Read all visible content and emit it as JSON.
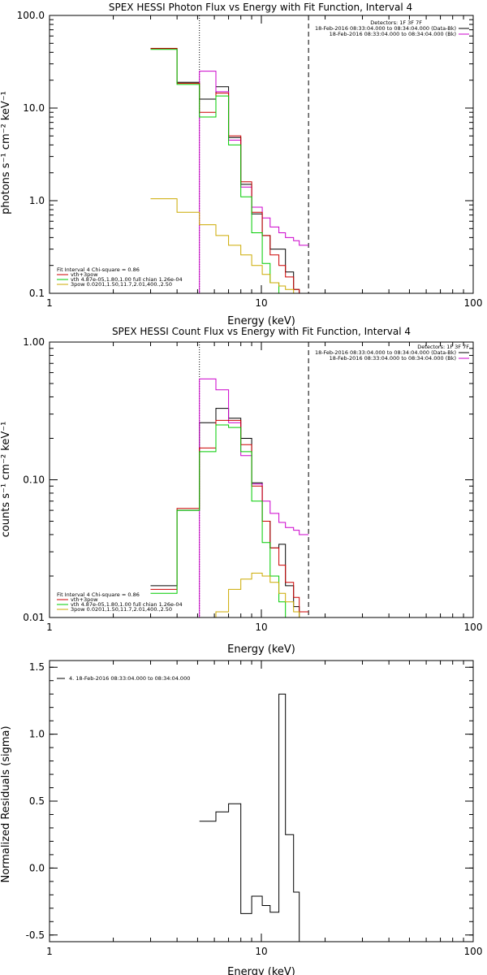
{
  "chart_data": [
    {
      "type": "line",
      "title": "SPEX HESSI Photon Flux vs Energy with Fit Function, Interval 4",
      "xlabel": "Energy (keV)",
      "ylabel": "photons s⁻¹ cm⁻² keV⁻¹",
      "xscale": "log",
      "yscale": "log",
      "xlim": [
        1,
        100
      ],
      "ylim": [
        0.1,
        100
      ],
      "xticks": [
        "1",
        "10",
        "100"
      ],
      "yticks": [
        "0.1",
        "1.0",
        "10.0",
        "100.0"
      ],
      "vlines": [
        {
          "x": 5.1,
          "style": "dotted"
        },
        {
          "x": 16.7,
          "style": "dashed"
        }
      ],
      "legend_right": {
        "header": "Detectors: 1F 3F 7F",
        "entries": [
          {
            "text": "18-Feb-2016 08:33:04.000 to 08:34:04.000 (Data-Bk)",
            "color": "#000000"
          },
          {
            "text": "18-Feb-2016 08:33:04.000 to 08:34:04.000 (Bk)",
            "color": "#cc00cc"
          }
        ]
      },
      "legend_left": {
        "header": "Fit Interval  4    Chi-square = 0.86",
        "entries": [
          {
            "text": "vth+3pow",
            "color": "#cc0000"
          },
          {
            "text": "vth 4.87e-05,1.80,1.00  full chian 1.26e-04",
            "color": "#00cc00"
          },
          {
            "text": "3pow 0.0201,1.50,11.7,2.01,400.,2.50",
            "color": "#ccaa00"
          }
        ]
      },
      "series": [
        {
          "color": "#000000",
          "edges": [
            3.0,
            4.0,
            5.1,
            6.1,
            7.0,
            8.0,
            9.0,
            10.1,
            11.0,
            12.1,
            13.0,
            14.2,
            15.1,
            16.7
          ],
          "values": [
            44,
            19,
            12.5,
            17,
            4.8,
            1.5,
            0.72,
            0.42,
            0.3,
            0.3,
            0.17,
            0.11,
            0.1
          ]
        },
        {
          "color": "#cc00cc",
          "edges": [
            3.0,
            4.0,
            5.1,
            6.1,
            7.0,
            8.0,
            9.0,
            10.1,
            11.0,
            12.1,
            13.0,
            14.2,
            15.1,
            16.7
          ],
          "values": [
            0.1,
            0.1,
            25,
            15,
            4.5,
            1.4,
            0.85,
            0.65,
            0.52,
            0.45,
            0.4,
            0.37,
            0.33
          ]
        },
        {
          "color": "#cc0000",
          "edges": [
            3.0,
            4.0,
            5.1,
            6.1,
            7.0,
            8.0,
            9.0,
            10.1,
            11.0,
            12.1,
            13.0,
            14.2,
            15.1,
            16.7
          ],
          "values": [
            44,
            18.5,
            9,
            14.5,
            5,
            1.6,
            0.75,
            0.42,
            0.26,
            0.2,
            0.15,
            0.11,
            0.1
          ]
        },
        {
          "color": "#00cc00",
          "edges": [
            3.0,
            4.0,
            5.1,
            6.1,
            7.0,
            8.0,
            9.0,
            10.1,
            11.0,
            12.1,
            13.0,
            14.2,
            15.1,
            16.7
          ],
          "values": [
            43,
            18,
            8,
            13.5,
            4,
            1.1,
            0.45,
            0.21,
            0.13,
            0.1,
            0.1,
            0.1,
            0.1
          ]
        },
        {
          "color": "#ccaa00",
          "edges": [
            3.0,
            4.0,
            5.1,
            6.1,
            7.0,
            8.0,
            9.0,
            10.1,
            11.0,
            12.1,
            13.0,
            14.2,
            15.1,
            16.7,
            18.0
          ],
          "values": [
            1.05,
            0.75,
            0.55,
            0.42,
            0.33,
            0.26,
            0.2,
            0.16,
            0.13,
            0.12,
            0.11,
            0.1,
            0.1,
            0.1
          ]
        }
      ]
    },
    {
      "type": "line",
      "title": "SPEX HESSI Count Flux vs Energy with Fit Function, Interval 4",
      "xlabel": "Energy (keV)",
      "ylabel": "counts s⁻¹ cm⁻² keV⁻¹",
      "xscale": "log",
      "yscale": "log",
      "xlim": [
        1,
        100
      ],
      "ylim": [
        0.01,
        1.0
      ],
      "xticks": [
        "1",
        "10",
        "100"
      ],
      "yticks": [
        "0.01",
        "0.10",
        "1.00"
      ],
      "vlines": [
        {
          "x": 5.1,
          "style": "dotted"
        },
        {
          "x": 16.7,
          "style": "dashed"
        }
      ],
      "legend_right": {
        "header": "Detectors: 1F 3F 7F",
        "entries": [
          {
            "text": "18-Feb-2016 08:33:04.000 to 08:34:04.000 (Data-Bk)",
            "color": "#000000"
          },
          {
            "text": "18-Feb-2016 08:33:04.000 to 08:34:04.000 (Bk)",
            "color": "#cc00cc"
          }
        ]
      },
      "legend_left": {
        "header": "Fit Interval  4    Chi-square = 0.86",
        "entries": [
          {
            "text": "vth+3pow",
            "color": "#cc0000"
          },
          {
            "text": "vth 4.87e-05,1.80,1.00  full chian 1.26e-04",
            "color": "#00cc00"
          },
          {
            "text": "3pow 0.0201,1.50,11.7,2.01,400.,2.50",
            "color": "#ccaa00"
          }
        ]
      },
      "series": [
        {
          "color": "#000000",
          "edges": [
            3.0,
            4.0,
            5.1,
            6.1,
            7.0,
            8.0,
            9.0,
            10.1,
            11.0,
            12.1,
            13.0,
            14.2,
            15.1,
            16.7
          ],
          "values": [
            0.017,
            0.06,
            0.26,
            0.33,
            0.28,
            0.2,
            0.095,
            0.05,
            0.032,
            0.034,
            0.017,
            0.012,
            0.01
          ]
        },
        {
          "color": "#cc00cc",
          "edges": [
            3.0,
            4.0,
            5.1,
            6.1,
            7.0,
            8.0,
            9.0,
            10.1,
            11.0,
            12.1,
            13.0,
            14.2,
            15.1,
            16.7
          ],
          "values": [
            0.01,
            0.01,
            0.54,
            0.45,
            0.26,
            0.15,
            0.093,
            0.07,
            0.057,
            0.049,
            0.045,
            0.043,
            0.04
          ]
        },
        {
          "color": "#cc0000",
          "edges": [
            3.0,
            4.0,
            5.1,
            6.1,
            7.0,
            8.0,
            9.0,
            10.1,
            11.0,
            12.1,
            13.0,
            14.2,
            15.1,
            16.7
          ],
          "values": [
            0.016,
            0.062,
            0.17,
            0.27,
            0.27,
            0.18,
            0.09,
            0.05,
            0.032,
            0.024,
            0.018,
            0.014,
            0.011
          ]
        },
        {
          "color": "#00cc00",
          "edges": [
            3.0,
            4.0,
            5.1,
            6.1,
            7.0,
            8.0,
            9.0,
            10.1,
            11.0,
            12.1,
            13.0,
            14.2,
            15.1,
            16.7
          ],
          "values": [
            0.015,
            0.06,
            0.16,
            0.25,
            0.24,
            0.16,
            0.07,
            0.035,
            0.02,
            0.013,
            0.01,
            0.01,
            0.01
          ]
        },
        {
          "color": "#ccaa00",
          "edges": [
            5.1,
            6.1,
            7.0,
            8.0,
            9.0,
            10.1,
            11.0,
            12.1,
            13.0,
            14.2,
            15.1,
            16.7,
            18.0
          ],
          "values": [
            0.01,
            0.011,
            0.016,
            0.019,
            0.021,
            0.02,
            0.018,
            0.015,
            0.013,
            0.011,
            0.01,
            0.01
          ]
        }
      ]
    },
    {
      "type": "line",
      "title": "",
      "xlabel": "Energy (keV)",
      "ylabel": "Normalized Residuals (sigma)",
      "xscale": "log",
      "yscale": "linear",
      "xlim": [
        1,
        100
      ],
      "ylim": [
        -0.55,
        1.55
      ],
      "xticks": [
        "1",
        "10",
        "100"
      ],
      "yticks": [
        "-0.5",
        "0.0",
        "0.5",
        "1.0",
        "1.5"
      ],
      "legend_left": {
        "entries": [
          {
            "text": "4. 18-Feb-2016 08:33:04.000 to 08:34:04.000",
            "color": "#000000"
          }
        ]
      },
      "series": [
        {
          "color": "#000000",
          "edges": [
            5.1,
            6.1,
            7.0,
            8.0,
            9.0,
            10.1,
            11.0,
            12.1,
            13.0,
            14.2,
            15.1,
            16.7
          ],
          "values": [
            0.35,
            0.42,
            0.48,
            -0.34,
            -0.21,
            -0.28,
            -0.33,
            1.3,
            0.25,
            -0.18,
            -0.55
          ]
        }
      ]
    }
  ]
}
